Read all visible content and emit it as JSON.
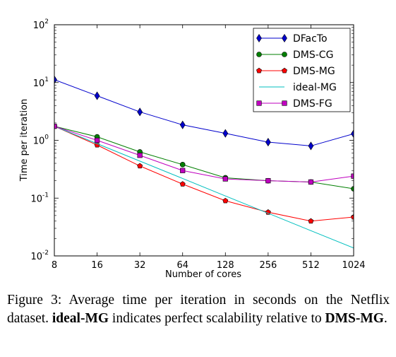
{
  "chart_data": {
    "type": "line",
    "xlabel": "Number of cores",
    "ylabel": "Time per iteration",
    "x": [
      8,
      16,
      32,
      64,
      128,
      256,
      512,
      1024
    ],
    "x_tick_labels": [
      "8",
      "16",
      "32",
      "64",
      "128",
      "256",
      "512",
      "1024"
    ],
    "xscale": "log2",
    "yscale": "log10",
    "ylim": [
      0.01,
      100
    ],
    "y_ticks": [
      {
        "base": "10",
        "exp": "-2"
      },
      {
        "base": "10",
        "exp": "-1"
      },
      {
        "base": "10",
        "exp": "0"
      },
      {
        "base": "10",
        "exp": "1"
      },
      {
        "base": "10",
        "exp": "2"
      }
    ],
    "legend_position": "top-right",
    "series": [
      {
        "name": "DFacTo",
        "color": "#0000cc",
        "marker": "diamond",
        "values": [
          11.2,
          5.9,
          3.1,
          1.85,
          1.32,
          0.93,
          0.8,
          1.3
        ]
      },
      {
        "name": "DMS-CG",
        "color": "#007f00",
        "marker": "circle",
        "values": [
          1.75,
          1.15,
          0.63,
          0.38,
          0.225,
          0.2,
          0.19,
          0.145
        ]
      },
      {
        "name": "DMS-MG",
        "color": "#ff0000",
        "marker": "pentagon",
        "values": [
          1.75,
          0.83,
          0.36,
          0.175,
          0.09,
          0.057,
          0.04,
          0.047
        ]
      },
      {
        "name": "ideal-MG",
        "color": "#00bfbf",
        "marker": "none",
        "values": [
          1.75,
          0.875,
          0.4375,
          0.21875,
          0.109,
          0.0547,
          0.0273,
          0.0137
        ]
      },
      {
        "name": "DMS-FG",
        "color": "#bf00bf",
        "marker": "square",
        "values": [
          1.75,
          1.0,
          0.55,
          0.3,
          0.215,
          0.2,
          0.19,
          0.24
        ]
      }
    ]
  },
  "caption": {
    "prefix": "Figure 3: Average time per iteration in seconds on the Netflix dataset. ",
    "bold1": "ideal-MG",
    "middle": " indicates perfect scalability relative to ",
    "bold2": "DMS-MG",
    "suffix": "."
  }
}
